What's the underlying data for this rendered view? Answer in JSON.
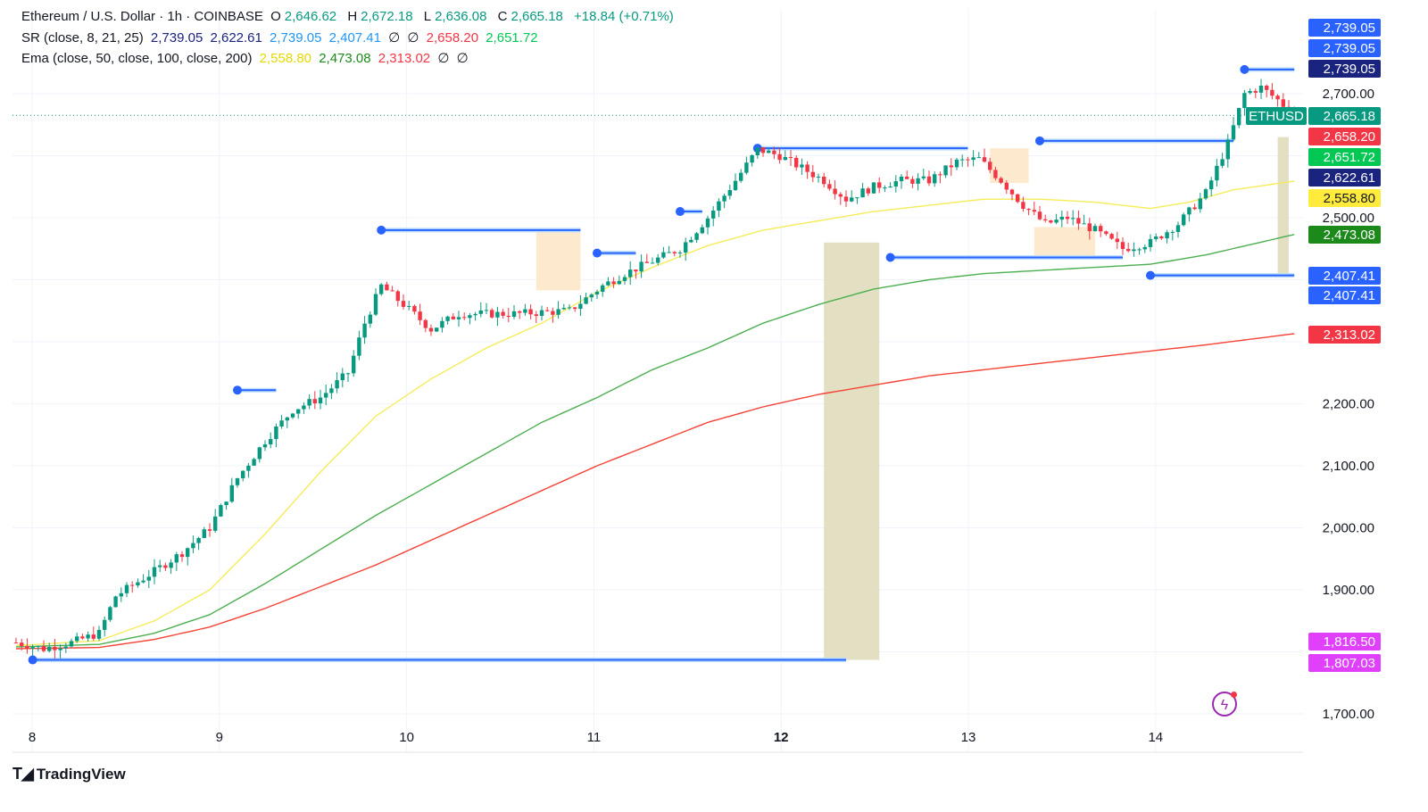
{
  "header": {
    "symbol": "Ethereum / U.S. Dollar · 1h · COINBASE",
    "o_label": "O",
    "o_value": "2,646.62",
    "h_label": "H",
    "h_value": "2,672.18",
    "l_label": "L",
    "l_value": "2,636.08",
    "c_label": "C",
    "c_value": "2,665.18",
    "change": "+18.84 (+0.71%)"
  },
  "indicators": {
    "sr": {
      "label": "SR (close, 8, 21, 25)",
      "values": [
        "2,739.05",
        "2,622.61",
        "2,739.05",
        "2,407.41",
        "∅",
        "∅",
        "2,658.20",
        "2,651.72"
      ]
    },
    "ema": {
      "label": "Ema (close, 50, close, 100, close, 200)",
      "values": [
        "2,558.80",
        "2,473.08",
        "2,313.02",
        "∅",
        "∅"
      ]
    }
  },
  "brand": {
    "name": "TradingView"
  },
  "colors": {
    "up": "#089981",
    "down": "#f23645",
    "ema50": "#f5ec5a",
    "ema100": "#4caf50",
    "ema200": "#f44336",
    "resistance": "#2962ff",
    "band_fill": "#dfdcbc"
  },
  "chart_data": {
    "type": "candlestick",
    "x_label": "",
    "y_label": "",
    "x_ticks": [
      "8",
      "9",
      "10",
      "11",
      "12",
      "13",
      "14"
    ],
    "ylim": [
      1680,
      2790
    ],
    "y_ticks": [
      1700,
      1800,
      1900,
      2000,
      2100,
      2200,
      2300,
      2400,
      2500,
      2600,
      2700
    ],
    "y_tick_labels": [
      "1,700.00",
      "",
      "1,900.00",
      "2,000.00",
      "2,100.00",
      "2,200.00",
      "",
      "",
      "2,500.00",
      "",
      "2,700.00"
    ],
    "last_price_label": "ETHUSD",
    "last_price": 2665.18,
    "price_labels": [
      {
        "value": 2739.05,
        "text": "2,739.05",
        "color": "#2962ff"
      },
      {
        "value": 2739.05,
        "text": "2,739.05",
        "color": "#2962ff"
      },
      {
        "value": 2739.05,
        "text": "2,739.05",
        "color": "#1a237e"
      },
      {
        "value": 2665.18,
        "text": "2,665.18",
        "color": "#089981"
      },
      {
        "value": 2658.2,
        "text": "2,658.20",
        "color": "#f23645"
      },
      {
        "value": 2651.72,
        "text": "2,651.72",
        "color": "#00c853"
      },
      {
        "value": 2622.61,
        "text": "2,622.61",
        "color": "#1a237e"
      },
      {
        "value": 2558.8,
        "text": "2,558.80",
        "color": "#ffeb3b"
      },
      {
        "value": 2473.08,
        "text": "2,473.08",
        "color": "#1b8a1b"
      },
      {
        "value": 2407.41,
        "text": "2,407.41",
        "color": "#2962ff"
      },
      {
        "value": 2407.41,
        "text": "2,407.41",
        "color": "#2962ff"
      },
      {
        "value": 2313.02,
        "text": "2,313.02",
        "color": "#f23645"
      },
      {
        "value": 1816.5,
        "text": "1,816.50",
        "color": "#e040fb"
      },
      {
        "value": 1807.03,
        "text": "1,807.03",
        "color": "#e040fb"
      }
    ],
    "price_anchors": [
      [
        0,
        1815
      ],
      [
        5,
        1805
      ],
      [
        10,
        1815
      ],
      [
        15,
        1830
      ],
      [
        18,
        1890
      ],
      [
        25,
        1930
      ],
      [
        30,
        1960
      ],
      [
        35,
        2000
      ],
      [
        40,
        2080
      ],
      [
        45,
        2140
      ],
      [
        50,
        2190
      ],
      [
        55,
        2210
      ],
      [
        60,
        2250
      ],
      [
        63,
        2330
      ],
      [
        66,
        2390
      ],
      [
        70,
        2360
      ],
      [
        75,
        2320
      ],
      [
        80,
        2345
      ],
      [
        90,
        2345
      ],
      [
        100,
        2350
      ],
      [
        106,
        2390
      ],
      [
        110,
        2410
      ],
      [
        115,
        2430
      ],
      [
        120,
        2450
      ],
      [
        125,
        2500
      ],
      [
        130,
        2560
      ],
      [
        134,
        2610
      ],
      [
        138,
        2600
      ],
      [
        142,
        2580
      ],
      [
        146,
        2560
      ],
      [
        150,
        2530
      ],
      [
        155,
        2550
      ],
      [
        160,
        2560
      ],
      [
        165,
        2560
      ],
      [
        170,
        2590
      ],
      [
        174,
        2595
      ],
      [
        178,
        2560
      ],
      [
        182,
        2520
      ],
      [
        186,
        2490
      ],
      [
        190,
        2500
      ],
      [
        195,
        2480
      ],
      [
        200,
        2450
      ],
      [
        205,
        2460
      ],
      [
        210,
        2490
      ],
      [
        215,
        2540
      ],
      [
        219,
        2620
      ],
      [
        222,
        2700
      ],
      [
        225,
        2710
      ],
      [
        228,
        2690
      ],
      [
        231,
        2665
      ]
    ],
    "ema50_anchors": [
      [
        0,
        1810
      ],
      [
        15,
        1818
      ],
      [
        25,
        1850
      ],
      [
        35,
        1900
      ],
      [
        45,
        1990
      ],
      [
        55,
        2090
      ],
      [
        65,
        2180
      ],
      [
        75,
        2240
      ],
      [
        85,
        2290
      ],
      [
        95,
        2330
      ],
      [
        105,
        2380
      ],
      [
        115,
        2420
      ],
      [
        125,
        2455
      ],
      [
        135,
        2480
      ],
      [
        145,
        2495
      ],
      [
        155,
        2510
      ],
      [
        165,
        2520
      ],
      [
        175,
        2530
      ],
      [
        185,
        2530
      ],
      [
        195,
        2525
      ],
      [
        205,
        2515
      ],
      [
        212,
        2525
      ],
      [
        220,
        2545
      ],
      [
        231,
        2559
      ]
    ],
    "ema100_anchors": [
      [
        0,
        1808
      ],
      [
        15,
        1812
      ],
      [
        25,
        1830
      ],
      [
        35,
        1860
      ],
      [
        45,
        1910
      ],
      [
        55,
        1965
      ],
      [
        65,
        2020
      ],
      [
        75,
        2070
      ],
      [
        85,
        2120
      ],
      [
        95,
        2170
      ],
      [
        105,
        2210
      ],
      [
        115,
        2255
      ],
      [
        125,
        2290
      ],
      [
        135,
        2330
      ],
      [
        145,
        2360
      ],
      [
        155,
        2385
      ],
      [
        165,
        2400
      ],
      [
        175,
        2410
      ],
      [
        185,
        2415
      ],
      [
        195,
        2420
      ],
      [
        205,
        2425
      ],
      [
        215,
        2440
      ],
      [
        231,
        2473
      ]
    ],
    "ema200_anchors": [
      [
        0,
        1805
      ],
      [
        15,
        1807
      ],
      [
        25,
        1820
      ],
      [
        35,
        1840
      ],
      [
        45,
        1870
      ],
      [
        55,
        1905
      ],
      [
        65,
        1940
      ],
      [
        75,
        1980
      ],
      [
        85,
        2020
      ],
      [
        95,
        2060
      ],
      [
        105,
        2100
      ],
      [
        115,
        2135
      ],
      [
        125,
        2170
      ],
      [
        135,
        2195
      ],
      [
        145,
        2215
      ],
      [
        155,
        2230
      ],
      [
        165,
        2245
      ],
      [
        175,
        2255
      ],
      [
        185,
        2265
      ],
      [
        195,
        2275
      ],
      [
        205,
        2285
      ],
      [
        215,
        2295
      ],
      [
        231,
        2313
      ]
    ],
    "resistance_lines": [
      {
        "x0": 66,
        "x1": 102,
        "y": 2480
      },
      {
        "x0": 134,
        "x1": 172,
        "y": 2612
      },
      {
        "x0": 185,
        "x1": 220,
        "y": 2624
      },
      {
        "x0": 222,
        "x1": 231,
        "y": 2739
      },
      {
        "x0": 40,
        "x1": 47,
        "y": 2222
      },
      {
        "x0": 105,
        "x1": 112,
        "y": 2443
      },
      {
        "x0": 120,
        "x1": 124,
        "y": 2510
      }
    ],
    "support_lines": [
      {
        "x0": 3,
        "x1": 150,
        "y": 1787
      },
      {
        "x0": 158,
        "x1": 200,
        "y": 2436
      },
      {
        "x0": 205,
        "x1": 231,
        "y": 2407
      }
    ],
    "bands": [
      {
        "x0": 146,
        "x1": 156,
        "y0": 1787,
        "y1": 2460
      },
      {
        "x0": 94,
        "x1": 102,
        "y0": 2383,
        "y1": 2480
      },
      {
        "x0": 176,
        "x1": 183,
        "y0": 2556,
        "y1": 2612
      },
      {
        "x0": 184,
        "x1": 195,
        "y0": 2436,
        "y1": 2485
      },
      {
        "x0": 228,
        "x1": 230,
        "y0": 2407,
        "y1": 2630
      }
    ],
    "series": [
      {
        "name": "ETHUSD",
        "kind": "candles"
      },
      {
        "name": "EMA 50",
        "kind": "line"
      },
      {
        "name": "EMA 100",
        "kind": "line"
      },
      {
        "name": "EMA 200",
        "kind": "line"
      }
    ],
    "grid": true,
    "legend_position": "top-left"
  }
}
